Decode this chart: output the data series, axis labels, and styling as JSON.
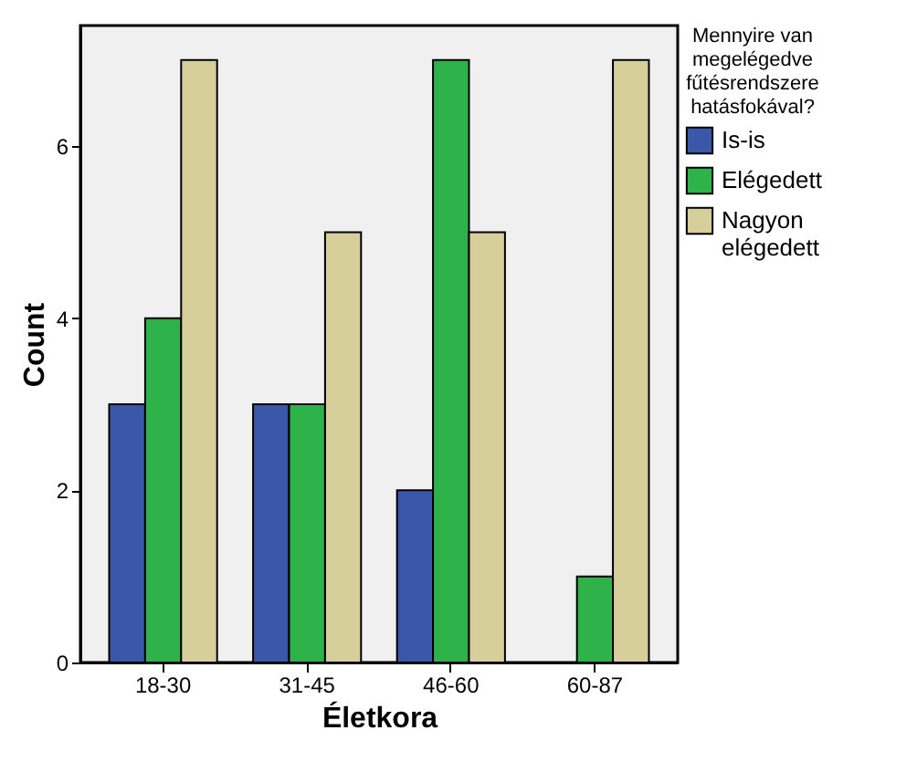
{
  "chart_data": {
    "type": "bar",
    "xlabel": "Életkora",
    "ylabel": "Count",
    "legend_title": "Mennyire van megelégedve fűtésrendszere hatásfokával?",
    "categories": [
      "18-30",
      "31-45",
      "46-60",
      "60-87"
    ],
    "series": [
      {
        "name": "Is-is",
        "color": "#3b57a8",
        "values": [
          3,
          3,
          2,
          null
        ]
      },
      {
        "name": "Elégedett",
        "color": "#2db34a",
        "values": [
          4,
          3,
          7,
          1
        ]
      },
      {
        "name": "Nagyon elégedett",
        "color": "#d6cf9c",
        "values": [
          7,
          5,
          5,
          7
        ]
      }
    ],
    "ylim": [
      0,
      7.4
    ],
    "yticks": [
      0,
      2,
      4,
      6
    ],
    "grid": false,
    "legend": "top right"
  }
}
